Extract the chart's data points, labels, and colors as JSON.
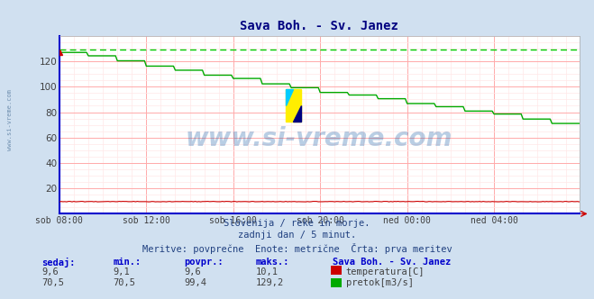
{
  "title": "Sava Boh. - Sv. Janez",
  "title_color": "#000080",
  "bg_color": "#d0e0f0",
  "plot_bg_color": "#ffffff",
  "grid_color_major": "#ffaaaa",
  "grid_color_minor": "#ffe8e8",
  "ylim": [
    0,
    140
  ],
  "yticks": [
    20,
    40,
    60,
    80,
    100,
    120
  ],
  "xlim": [
    0,
    287
  ],
  "xtick_labels": [
    "sob 08:00",
    "sob 12:00",
    "sob 16:00",
    "sob 20:00",
    "ned 00:00",
    "ned 04:00"
  ],
  "xtick_positions": [
    0,
    48,
    96,
    144,
    192,
    240
  ],
  "temp_color": "#cc0000",
  "flow_color": "#00aa00",
  "flow_avg_color": "#00cc00",
  "border_color": "#0000cc",
  "watermark_text": "www.si-vreme.com",
  "watermark_color": "#1a5fa8",
  "subtitle1": "Slovenija / reke in morje.",
  "subtitle2": "zadnji dan / 5 minut.",
  "subtitle3": "Meritve: povprečne  Enote: metrične  Črta: prva meritev",
  "legend_title": "Sava Boh. - Sv. Janez",
  "stats_headers": [
    "sedaj:",
    "min.:",
    "povpr.:",
    "maks.:"
  ],
  "temp_stats": [
    "9,6",
    "9,1",
    "9,6",
    "10,1"
  ],
  "flow_stats": [
    "70,5",
    "70,5",
    "99,4",
    "129,2"
  ],
  "temp_label": "temperatura[C]",
  "flow_label": "pretok[m3/s]",
  "n_points": 288,
  "temp_value": 9.6,
  "temp_min": 9.1,
  "temp_max": 10.1,
  "flow_start": 129.2,
  "flow_end": 70.5,
  "flow_avg_dashed": 129.2,
  "sidebar_text": "www.si-vreme.com",
  "sidebar_color": "#7090b0"
}
